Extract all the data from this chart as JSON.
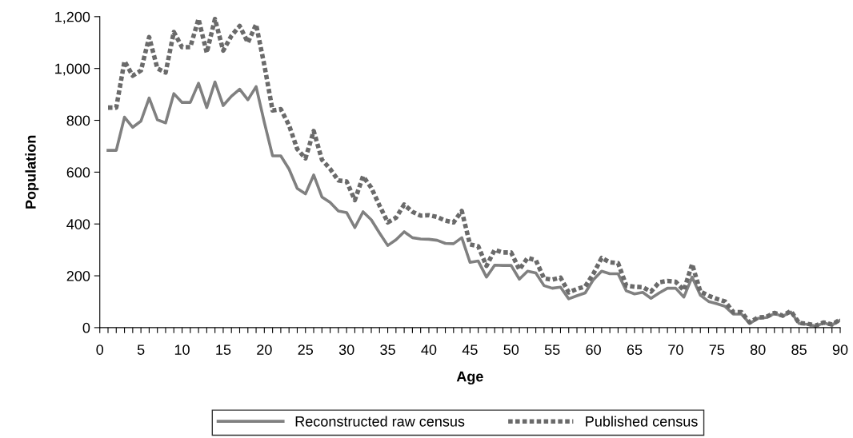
{
  "chart_data": {
    "type": "line",
    "xlabel": "Age",
    "ylabel": "Population",
    "x": [
      1,
      2,
      3,
      4,
      5,
      6,
      7,
      8,
      9,
      10,
      11,
      12,
      13,
      14,
      15,
      16,
      17,
      18,
      19,
      20,
      21,
      22,
      23,
      24,
      25,
      26,
      27,
      28,
      29,
      30,
      31,
      32,
      33,
      34,
      35,
      36,
      37,
      38,
      39,
      40,
      41,
      42,
      43,
      44,
      45,
      46,
      47,
      48,
      49,
      50,
      51,
      52,
      53,
      54,
      55,
      56,
      57,
      58,
      59,
      60,
      61,
      62,
      63,
      64,
      65,
      66,
      67,
      68,
      69,
      70,
      71,
      72,
      73,
      74,
      75,
      76,
      77,
      78,
      79,
      80,
      81,
      82,
      83,
      84,
      85,
      86,
      87,
      88,
      89,
      90
    ],
    "series": [
      {
        "name": "Reconstructed raw census",
        "color": "#808080",
        "values": [
          684,
          684,
          812,
          773,
          797,
          886,
          802,
          790,
          903,
          869,
          869,
          943,
          849,
          948,
          857,
          893,
          920,
          879,
          930,
          792,
          663,
          663,
          612,
          537,
          516,
          589,
          504,
          483,
          450,
          444,
          386,
          447,
          416,
          365,
          317,
          339,
          370,
          347,
          342,
          341,
          337,
          325,
          324,
          347,
          252,
          257,
          195,
          241,
          240,
          240,
          187,
          218,
          211,
          162,
          152,
          156,
          111,
          123,
          134,
          185,
          218,
          208,
          208,
          142,
          130,
          136,
          113,
          134,
          152,
          152,
          118,
          195,
          125,
          101,
          92,
          82,
          52,
          52,
          16,
          36,
          39,
          54,
          44,
          60,
          16,
          13,
          6,
          18,
          10,
          29
        ]
      },
      {
        "name": "Published census",
        "color": "#6a6a6a",
        "line_style": "dotted",
        "values": [
          849,
          849,
          1028,
          972,
          992,
          1121,
          1000,
          984,
          1141,
          1082,
          1082,
          1191,
          1061,
          1191,
          1069,
          1126,
          1164,
          1100,
          1170,
          1013,
          838,
          843,
          781,
          689,
          653,
          759,
          648,
          612,
          568,
          564,
          492,
          584,
          540,
          471,
          406,
          424,
          475,
          447,
          432,
          434,
          427,
          413,
          406,
          450,
          321,
          314,
          238,
          300,
          290,
          290,
          224,
          269,
          260,
          190,
          185,
          193,
          136,
          149,
          159,
          208,
          269,
          252,
          249,
          162,
          158,
          156,
          139,
          175,
          180,
          177,
          144,
          245,
          139,
          123,
          111,
          101,
          60,
          60,
          20,
          39,
          41,
          57,
          46,
          64,
          18,
          15,
          8,
          20,
          12,
          31
        ]
      }
    ],
    "xlim": [
      0,
      90
    ],
    "xticks": [
      0,
      {
        "value": 1,
        "label": null
      },
      {
        "value": 2,
        "label": null
      },
      {
        "value": 3,
        "label": null
      },
      {
        "value": 4,
        "label": null
      },
      5,
      {
        "value": 6,
        "label": null
      },
      {
        "value": 7,
        "label": null
      },
      {
        "value": 8,
        "label": null
      },
      {
        "value": 9,
        "label": null
      },
      10,
      {
        "value": 11,
        "label": null
      },
      {
        "value": 12,
        "label": null
      },
      {
        "value": 13,
        "label": null
      },
      {
        "value": 14,
        "label": null
      },
      15,
      {
        "value": 16,
        "label": null
      },
      {
        "value": 17,
        "label": null
      },
      {
        "value": 18,
        "label": null
      },
      {
        "value": 19,
        "label": null
      },
      20,
      {
        "value": 21,
        "label": null
      },
      {
        "value": 22,
        "label": null
      },
      {
        "value": 23,
        "label": null
      },
      {
        "value": 24,
        "label": null
      },
      25,
      {
        "value": 26,
        "label": null
      },
      {
        "value": 27,
        "label": null
      },
      {
        "value": 28,
        "label": null
      },
      {
        "value": 29,
        "label": null
      },
      30,
      {
        "value": 31,
        "label": null
      },
      {
        "value": 32,
        "label": null
      },
      {
        "value": 33,
        "label": null
      },
      {
        "value": 34,
        "label": null
      },
      35,
      {
        "value": 36,
        "label": null
      },
      {
        "value": 37,
        "label": null
      },
      {
        "value": 38,
        "label": null
      },
      {
        "value": 39,
        "label": null
      },
      40,
      {
        "value": 41,
        "label": null
      },
      {
        "value": 42,
        "label": null
      },
      {
        "value": 43,
        "label": null
      },
      {
        "value": 44,
        "label": null
      },
      45,
      {
        "value": 46,
        "label": null
      },
      {
        "value": 47,
        "label": null
      },
      {
        "value": 48,
        "label": null
      },
      {
        "value": 49,
        "label": null
      },
      50,
      {
        "value": 51,
        "label": null
      },
      {
        "value": 52,
        "label": null
      },
      {
        "value": 53,
        "label": null
      },
      {
        "value": 54,
        "label": null
      },
      55,
      {
        "value": 56,
        "label": null
      },
      {
        "value": 57,
        "label": null
      },
      {
        "value": 58,
        "label": null
      },
      {
        "value": 59,
        "label": null
      },
      60,
      {
        "value": 61,
        "label": null
      },
      {
        "value": 62,
        "label": null
      },
      {
        "value": 63,
        "label": null
      },
      {
        "value": 64,
        "label": null
      },
      65,
      {
        "value": 66,
        "label": null
      },
      {
        "value": 67,
        "label": null
      },
      {
        "value": 68,
        "label": null
      },
      {
        "value": 69,
        "label": null
      },
      70,
      {
        "value": 71,
        "label": null
      },
      {
        "value": 72,
        "label": null
      },
      {
        "value": 73,
        "label": null
      },
      {
        "value": 74,
        "label": null
      },
      75,
      {
        "value": 76,
        "label": null
      },
      {
        "value": 77,
        "label": null
      },
      {
        "value": 78,
        "label": null
      },
      {
        "value": 79,
        "label": null
      },
      80,
      {
        "value": 81,
        "label": null
      },
      {
        "value": 82,
        "label": null
      },
      {
        "value": 83,
        "label": null
      },
      {
        "value": 84,
        "label": null
      },
      85,
      {
        "value": 86,
        "label": null
      },
      {
        "value": 87,
        "label": null
      },
      {
        "value": 88,
        "label": null
      },
      {
        "value": 89,
        "label": null
      },
      90
    ],
    "ylim": [
      0,
      1200
    ],
    "yticks": [
      0,
      200,
      400,
      600,
      800,
      {
        "value": 1000,
        "label": "1,000"
      },
      {
        "value": 1200,
        "label": "1,200"
      }
    ],
    "grid": false,
    "legend": "bottom",
    "marker": "none",
    "line_style": "solid"
  }
}
